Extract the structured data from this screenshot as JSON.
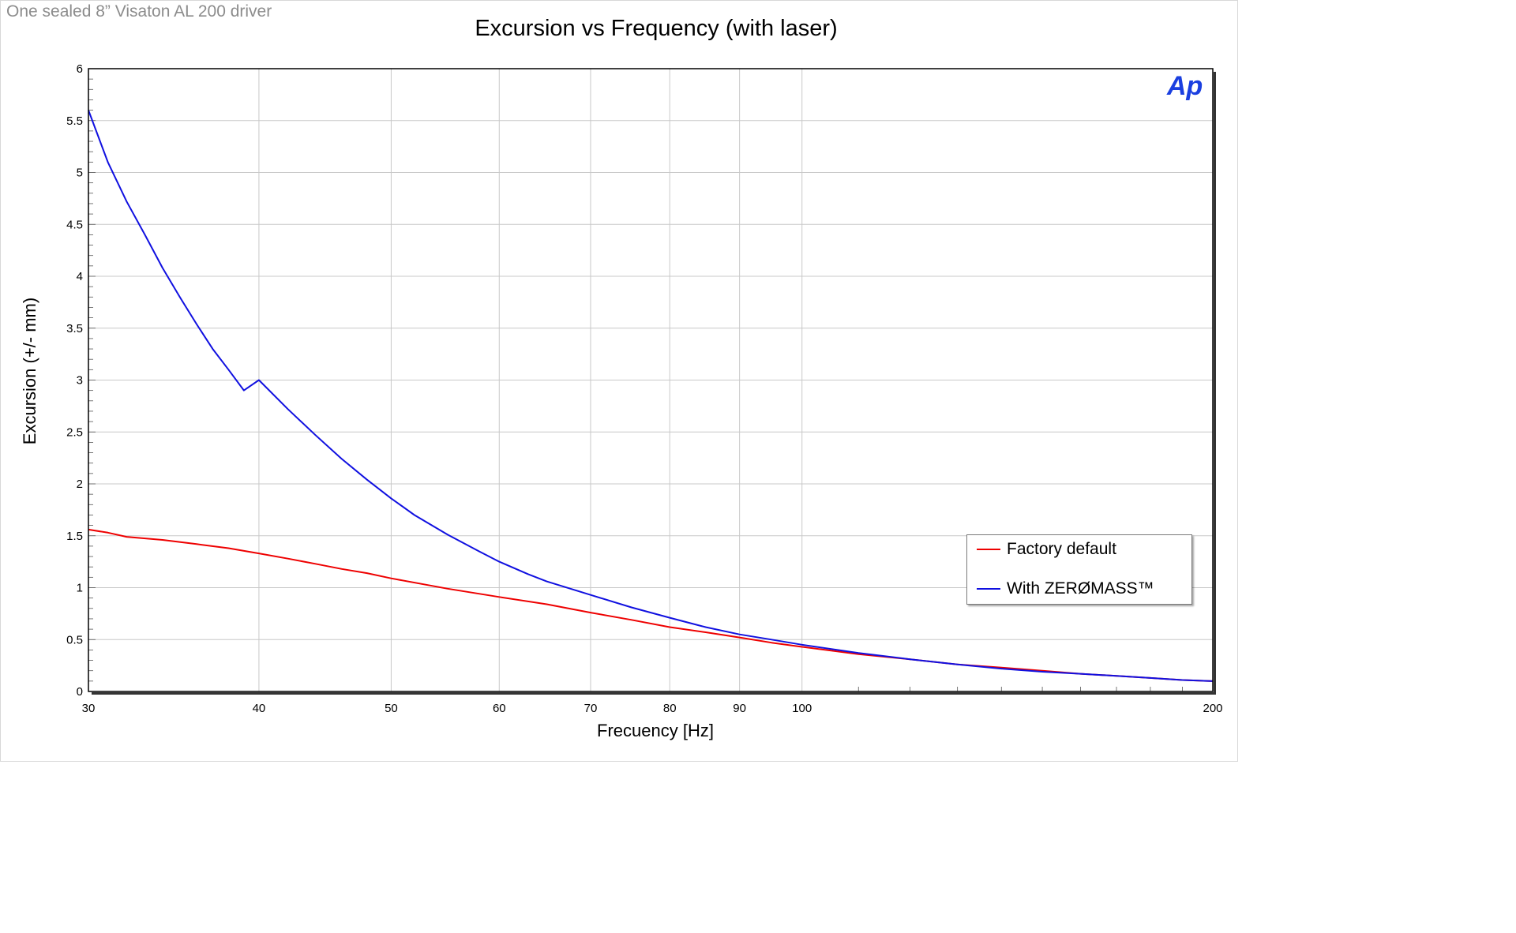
{
  "subtitle": "One sealed 8” Visaton AL 200 driver",
  "logo_text": "Ap",
  "colors": {
    "logo": "#1a3fe0",
    "grid": "#c8c8c8",
    "plot_border": "#000000"
  },
  "chart_data": {
    "type": "line",
    "title": "Excursion vs Frequency (with laser)",
    "xlabel": "Frecuency [Hz]",
    "ylabel": "Excursion (+/- mm)",
    "xscale": "log",
    "xlim": [
      30,
      200
    ],
    "ylim": [
      0,
      6
    ],
    "xticks": [
      30,
      40,
      50,
      60,
      70,
      80,
      90,
      100,
      200
    ],
    "yticks": [
      0,
      0.5,
      1,
      1.5,
      2,
      2.5,
      3,
      3.5,
      4,
      4.5,
      5,
      5.5,
      6
    ],
    "grid": true,
    "legend_position": "bottom-right",
    "series": [
      {
        "name": "Factory default",
        "color": "#ee0000",
        "x": [
          30,
          31,
          32,
          34,
          36,
          38,
          40,
          42,
          44,
          46,
          48,
          50,
          55,
          60,
          65,
          70,
          75,
          80,
          85,
          90,
          95,
          100,
          110,
          120,
          130,
          140,
          150,
          160,
          170,
          180,
          190,
          200
        ],
        "y": [
          1.56,
          1.53,
          1.49,
          1.46,
          1.42,
          1.38,
          1.33,
          1.28,
          1.23,
          1.18,
          1.14,
          1.09,
          0.99,
          0.91,
          0.84,
          0.76,
          0.69,
          0.62,
          0.57,
          0.52,
          0.47,
          0.43,
          0.36,
          0.31,
          0.26,
          0.23,
          0.2,
          0.17,
          0.15,
          0.13,
          0.11,
          0.1
        ]
      },
      {
        "name": "With ZERØMASS™",
        "color": "#1010e0",
        "x": [
          30,
          31,
          32,
          33,
          34,
          35,
          36,
          37,
          38,
          39,
          40,
          42,
          44,
          46,
          48,
          50,
          52,
          55,
          58,
          60,
          63,
          65,
          70,
          75,
          80,
          85,
          90,
          95,
          100,
          110,
          120,
          130,
          140,
          150,
          160,
          170,
          180,
          190,
          200
        ],
        "y": [
          5.6,
          5.1,
          4.72,
          4.4,
          4.08,
          3.8,
          3.54,
          3.3,
          3.1,
          2.9,
          3.0,
          2.72,
          2.47,
          2.24,
          2.04,
          1.86,
          1.7,
          1.51,
          1.35,
          1.25,
          1.13,
          1.06,
          0.93,
          0.81,
          0.71,
          0.62,
          0.55,
          0.5,
          0.45,
          0.37,
          0.31,
          0.26,
          0.22,
          0.19,
          0.17,
          0.15,
          0.13,
          0.11,
          0.1
        ]
      }
    ]
  }
}
